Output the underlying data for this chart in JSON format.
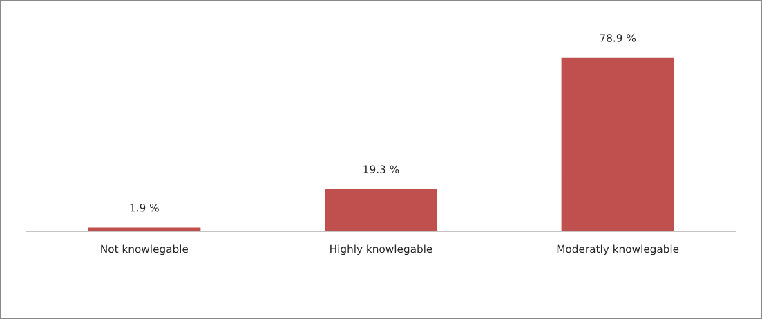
{
  "chart_data": {
    "type": "bar",
    "categories": [
      "Not knowlegable",
      "Highly knowlegable",
      "Moderatly knowlegable"
    ],
    "values": [
      1.9,
      19.3,
      78.9
    ],
    "value_labels": [
      "1.9 %",
      "19.3 %",
      "78.9 %"
    ],
    "color": "#c0504d",
    "tick_labels": "x",
    "grid": false,
    "legend": false
  }
}
